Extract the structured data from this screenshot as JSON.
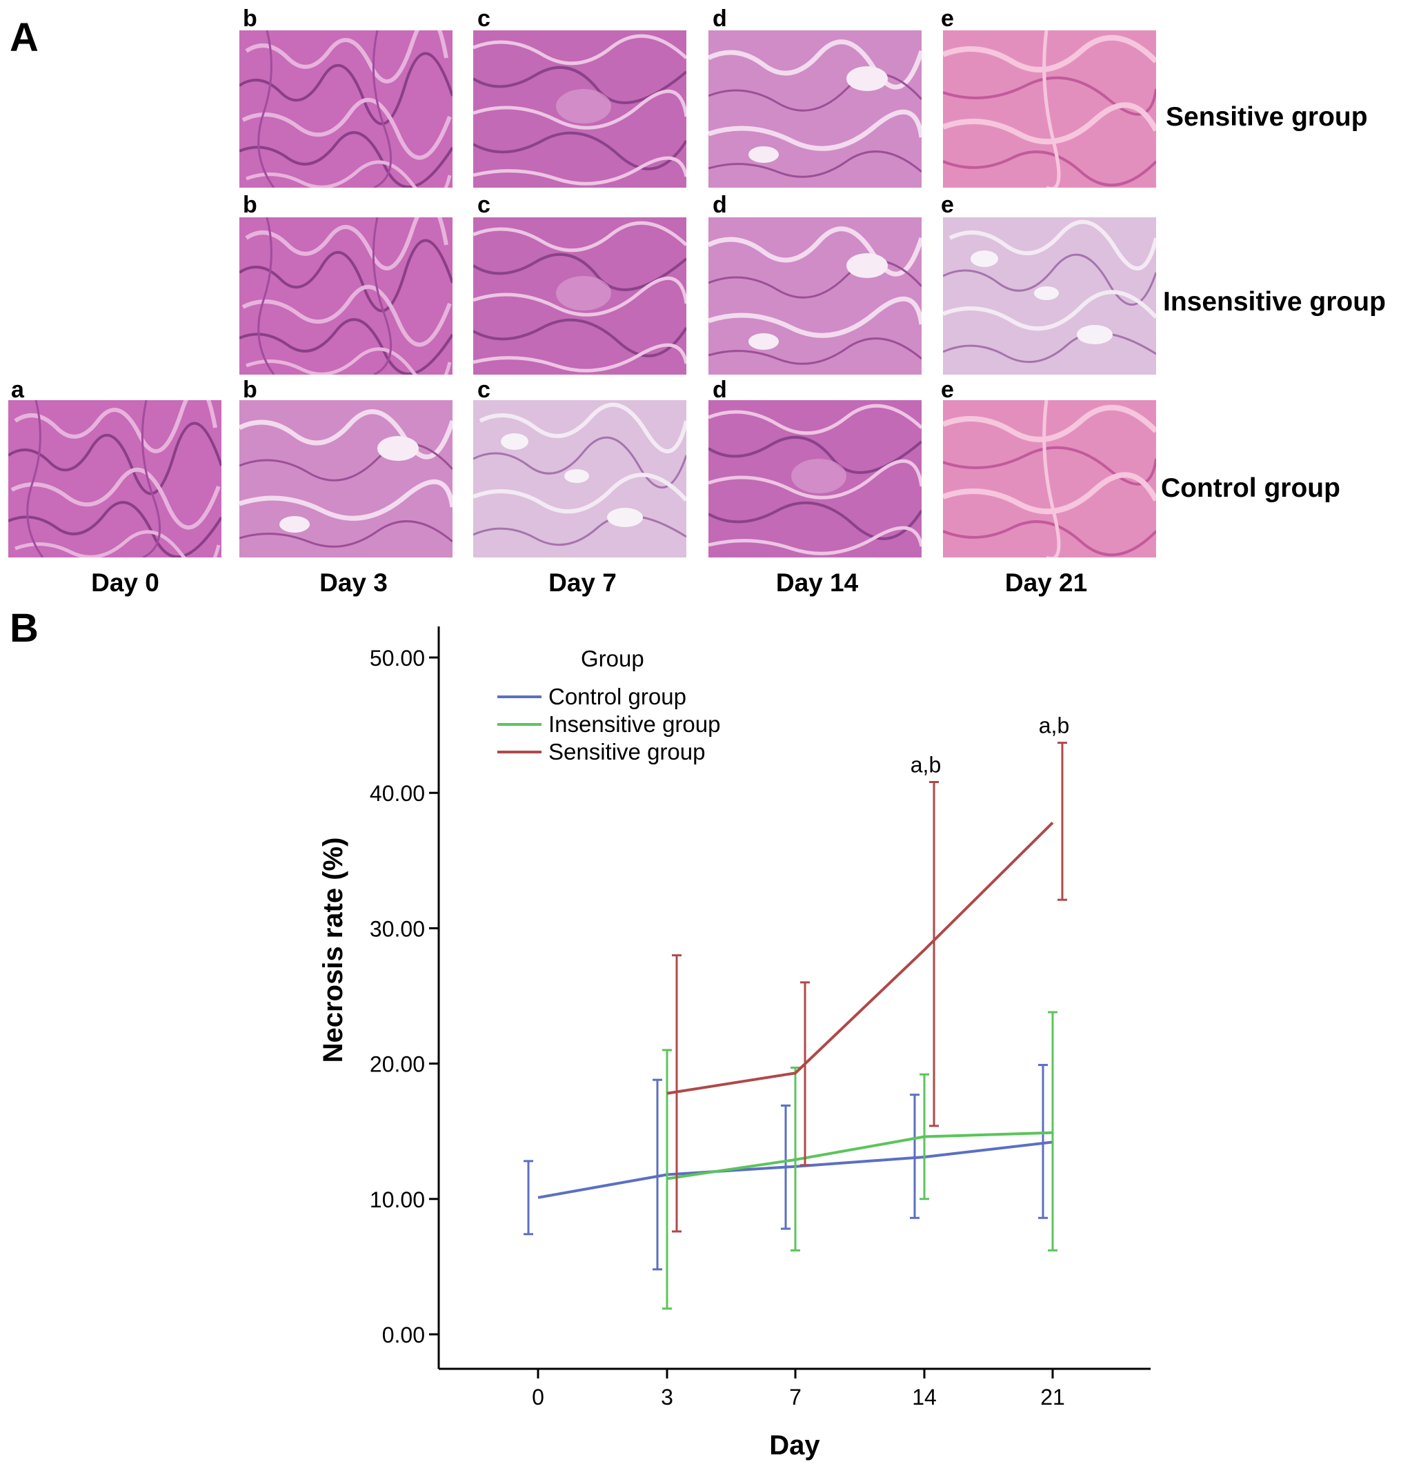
{
  "panel_a": {
    "letter": "A",
    "rows": [
      {
        "label": "Sensitive group",
        "letters": [
          "b",
          "c",
          "d",
          "e"
        ]
      },
      {
        "label": "Insensitive group",
        "letters": [
          "b",
          "c",
          "d",
          "e"
        ]
      },
      {
        "label": "Control group",
        "letters": [
          "a",
          "b",
          "c",
          "d",
          "e"
        ]
      }
    ],
    "columns": [
      "Day 0",
      "Day 3",
      "Day 7",
      "Day 14",
      "Day 21"
    ]
  },
  "panel_b": {
    "letter": "B"
  },
  "chart_data": {
    "type": "line",
    "title": "",
    "xlabel": "Day",
    "ylabel": "Necrosis rate (%)",
    "categories": [
      "0",
      "3",
      "7",
      "14",
      "21"
    ],
    "yticks": [
      "0.00",
      "10.00",
      "20.00",
      "30.00",
      "40.00",
      "50.00"
    ],
    "ylim": [
      0,
      50
    ],
    "grid": false,
    "legend": {
      "title": "Group",
      "position": "top-left"
    },
    "series": [
      {
        "name": "Control group",
        "color": "#5b6fc2",
        "values": [
          10.1,
          11.8,
          12.4,
          13.1,
          14.2
        ],
        "lower": [
          7.4,
          4.8,
          7.8,
          8.6,
          8.6
        ],
        "upper": [
          12.8,
          18.8,
          16.9,
          17.7,
          19.9
        ]
      },
      {
        "name": "Insensitive group",
        "color": "#5cc45c",
        "values": [
          null,
          11.5,
          12.9,
          14.6,
          14.9
        ],
        "lower": [
          null,
          1.9,
          6.2,
          10.0,
          6.2
        ],
        "upper": [
          null,
          21.0,
          19.7,
          19.2,
          23.8
        ]
      },
      {
        "name": "Sensitive group",
        "color": "#b04848",
        "values": [
          null,
          17.8,
          19.3,
          28.4,
          37.8
        ],
        "lower": [
          null,
          7.6,
          12.5,
          15.4,
          32.1
        ],
        "upper": [
          null,
          28.0,
          26.0,
          40.8,
          43.7
        ]
      }
    ],
    "annotations": [
      {
        "category": "14",
        "text": "a,b"
      },
      {
        "category": "21",
        "text": "a,b"
      }
    ]
  }
}
